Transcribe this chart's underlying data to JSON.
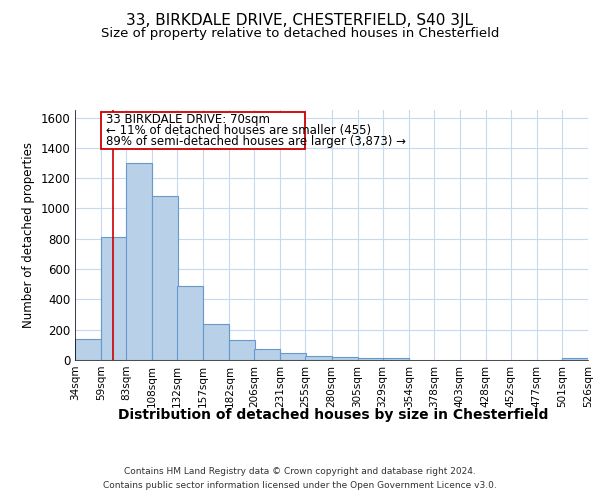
{
  "title1": "33, BIRKDALE DRIVE, CHESTERFIELD, S40 3JL",
  "title2": "Size of property relative to detached houses in Chesterfield",
  "xlabel": "Distribution of detached houses by size in Chesterfield",
  "ylabel": "Number of detached properties",
  "footnote1": "Contains HM Land Registry data © Crown copyright and database right 2024.",
  "footnote2": "Contains public sector information licensed under the Open Government Licence v3.0.",
  "annotation_line1": "33 BIRKDALE DRIVE: 70sqm",
  "annotation_line2": "← 11% of detached houses are smaller (455)",
  "annotation_line3": "89% of semi-detached houses are larger (3,873) →",
  "bar_color": "#b8d0e8",
  "bar_edge_color": "#6699cc",
  "red_line_color": "#cc0000",
  "background_color": "#ffffff",
  "grid_color": "#c8d8ee",
  "bins": [
    "34sqm",
    "59sqm",
    "83sqm",
    "108sqm",
    "132sqm",
    "157sqm",
    "182sqm",
    "206sqm",
    "231sqm",
    "255sqm",
    "280sqm",
    "305sqm",
    "329sqm",
    "354sqm",
    "378sqm",
    "403sqm",
    "428sqm",
    "452sqm",
    "477sqm",
    "501sqm",
    "526sqm"
  ],
  "bin_edges_sqm": [
    34,
    59,
    83,
    108,
    132,
    157,
    182,
    206,
    231,
    255,
    280,
    305,
    329,
    354,
    378,
    403,
    428,
    452,
    477,
    501,
    526
  ],
  "bar_heights": [
    140,
    810,
    1300,
    1080,
    490,
    235,
    130,
    70,
    45,
    25,
    18,
    14,
    12,
    0,
    0,
    0,
    0,
    0,
    0,
    12
  ],
  "property_size_sqm": 70,
  "ylim": [
    0,
    1650
  ],
  "yticks": [
    0,
    200,
    400,
    600,
    800,
    1000,
    1200,
    1400,
    1600
  ]
}
